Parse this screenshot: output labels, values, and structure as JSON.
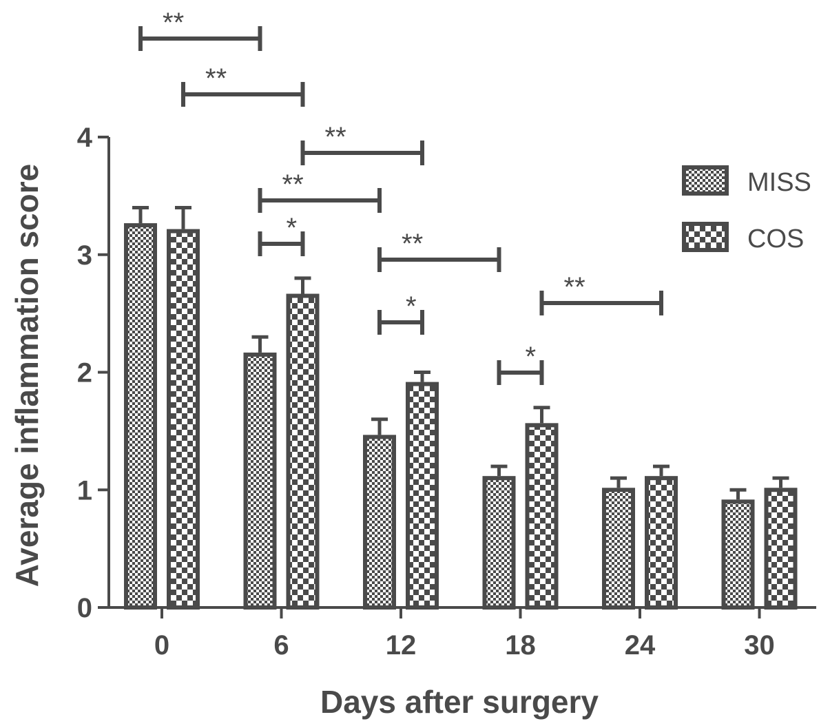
{
  "chart_data": {
    "type": "bar",
    "xlabel": "Days after surgery",
    "ylabel": "Average inflammation score",
    "ylim": [
      0,
      4
    ],
    "yticks": [
      "0",
      "1",
      "2",
      "3",
      "4"
    ],
    "categories": [
      "0",
      "6",
      "12",
      "18",
      "24",
      "30"
    ],
    "legend_position": "top-right",
    "series": [
      {
        "name": "MISS",
        "pattern": "fine-check",
        "values": [
          3.25,
          2.15,
          1.45,
          1.1,
          1.0,
          0.9
        ],
        "errors": [
          0.15,
          0.15,
          0.15,
          0.1,
          0.1,
          0.1
        ]
      },
      {
        "name": "COS",
        "pattern": "coarse-check",
        "values": [
          3.2,
          2.65,
          1.9,
          1.55,
          1.1,
          1.0
        ],
        "errors": [
          0.2,
          0.15,
          0.1,
          0.15,
          0.1,
          0.1
        ]
      }
    ],
    "significance": [
      {
        "from": [
          "0",
          "MISS"
        ],
        "to": [
          "6",
          "MISS"
        ],
        "label": "**"
      },
      {
        "from": [
          "0",
          "COS"
        ],
        "to": [
          "6",
          "COS"
        ],
        "label": "**"
      },
      {
        "from": [
          "6",
          "COS"
        ],
        "to": [
          "12",
          "COS"
        ],
        "label": "**"
      },
      {
        "from": [
          "6",
          "MISS"
        ],
        "to": [
          "12",
          "MISS"
        ],
        "label": "**"
      },
      {
        "from": [
          "6",
          "MISS"
        ],
        "to": [
          "6",
          "COS"
        ],
        "label": "*"
      },
      {
        "from": [
          "12",
          "MISS"
        ],
        "to": [
          "18",
          "MISS"
        ],
        "label": "**"
      },
      {
        "from": [
          "12",
          "MISS"
        ],
        "to": [
          "12",
          "COS"
        ],
        "label": "*"
      },
      {
        "from": [
          "18",
          "MISS"
        ],
        "to": [
          "18",
          "COS"
        ],
        "label": "*"
      },
      {
        "from": [
          "18",
          "COS"
        ],
        "to": [
          "24",
          "COS"
        ],
        "label": "**"
      }
    ],
    "colors": {
      "ink": "#4a4a4a",
      "background": "#ffffff"
    }
  }
}
